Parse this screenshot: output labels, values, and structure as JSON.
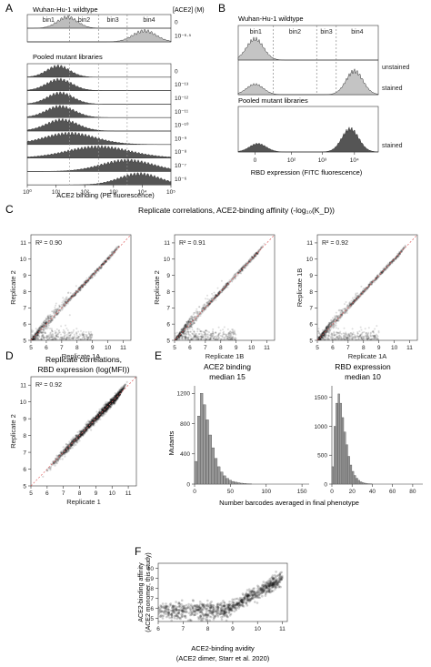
{
  "panels": {
    "A": {
      "letter": "A",
      "wt_label": "Wuhan-Hu-1 wildtype",
      "conc_header": "[ACE2] (M)",
      "bins": [
        "bin1",
        "bin2",
        "bin3",
        "bin4"
      ],
      "wt_concs": [
        "0",
        "10⁻⁶·⁵"
      ],
      "lib_label": "Pooled mutant libraries",
      "lib_concs": [
        "0",
        "10⁻¹³",
        "10⁻¹²",
        "10⁻¹¹",
        "10⁻¹⁰",
        "10⁻⁹",
        "10⁻⁸",
        "10⁻⁷",
        "10⁻⁶"
      ],
      "x_ticks": [
        "10⁰",
        "10¹",
        "10²",
        "10³",
        "10⁴",
        "10⁵"
      ],
      "xlabel": "ACE2 binding (PE fluorescence)"
    },
    "B": {
      "letter": "B",
      "wt_label": "Wuhan-Hu-1 wildtype",
      "bins": [
        "bin1",
        "bin2",
        "bin3",
        "bin4"
      ],
      "row_labels": [
        "unstained",
        "stained"
      ],
      "lib_label": "Pooled mutant libraries",
      "lib_row_label": "stained",
      "x_ticks": [
        "0",
        "10²",
        "10³",
        "10⁴"
      ],
      "xlabel": "RBD expression (FITC fluorescence)"
    },
    "C": {
      "letter": "C",
      "title": "Replicate correlations, ACE2-binding affinity (-log₁₀(K_D))",
      "plots": [
        {
          "r2": "R² = 0.90",
          "xlabel": "Replicate 1A",
          "ylabel": "Replicate 2"
        },
        {
          "r2": "R² = 0.91",
          "xlabel": "Replicate 1B",
          "ylabel": "Replicate 2"
        },
        {
          "r2": "R² = 0.92",
          "xlabel": "Replicate 1A",
          "ylabel": "Replicate 1B"
        }
      ],
      "ticks": [
        "5",
        "6",
        "7",
        "8",
        "9",
        "10",
        "11"
      ]
    },
    "D": {
      "letter": "D",
      "title_lines": [
        "Replicate correlations,",
        "RBD expression (log(MFI))"
      ],
      "r2": "R² = 0.92",
      "xlabel": "Replicate 1",
      "ylabel": "Replicate 2",
      "ticks": [
        "5",
        "6",
        "7",
        "8",
        "9",
        "10",
        "11"
      ]
    },
    "E": {
      "letter": "E",
      "left": {
        "title_lines": [
          "ACE2 binding",
          "median 15"
        ],
        "y_ticks": [
          "0",
          "400",
          "800",
          "1200"
        ],
        "x_ticks": [
          "0",
          "50",
          "100",
          "150"
        ]
      },
      "right": {
        "title_lines": [
          "RBD expression",
          "median 10"
        ],
        "y_ticks": [
          "0",
          "500",
          "1000",
          "1500"
        ],
        "x_ticks": [
          "0",
          "20",
          "40",
          "60",
          "80"
        ]
      },
      "ylabel": "Mutants",
      "xlabel": "Number barcodes averaged in final phenotype"
    },
    "F": {
      "letter": "F",
      "ylabel_lines": [
        "ACE2-binding affinity",
        "(ACE2 monomer, this study)"
      ],
      "xlabel_lines": [
        "ACE2-binding avidity",
        "(ACE2 dimer, Starr et al. 2020)"
      ],
      "x_ticks": [
        "6",
        "7",
        "8",
        "9",
        "10",
        "11"
      ],
      "y_ticks": [
        "5",
        "6",
        "7",
        "8",
        "9",
        "10"
      ]
    }
  },
  "chart_data": [
    {
      "type": "area",
      "panel": "A",
      "xlabel": "ACE2 binding (PE fluorescence)",
      "xscale": "log",
      "xlim": [
        1,
        100000
      ],
      "gates": [
        30,
        300,
        3000
      ],
      "series": [
        {
          "name": "0",
          "peak_x": 25,
          "spread_decades": 0.35
        },
        {
          "name": "10⁻⁶·⁵",
          "peak_x": 12000,
          "spread_decades": 0.4
        },
        {
          "name": "0",
          "peak_x": 12,
          "spread_decades": 0.4
        },
        {
          "name": "10⁻¹³",
          "peak_x": 13,
          "spread_decades": 0.45
        },
        {
          "name": "10⁻¹²",
          "peak_x": 14,
          "spread_decades": 0.45
        },
        {
          "name": "10⁻¹¹",
          "peak_x": 14,
          "spread_decades": 0.5
        },
        {
          "name": "10⁻¹⁰",
          "peak_x": 16,
          "spread_decades": 0.55
        },
        {
          "name": "10⁻⁹",
          "peak_x": 30,
          "spread_decades": 0.9
        },
        {
          "name": "10⁻⁸",
          "peak_x": 300,
          "spread_decades": 1.1
        },
        {
          "name": "10⁻⁷",
          "peak_x": 3000,
          "spread_decades": 0.9
        },
        {
          "name": "10⁻⁶",
          "peak_x": 8000,
          "spread_decades": 0.7
        }
      ]
    },
    {
      "type": "area",
      "panel": "B",
      "xlabel": "RBD expression (FITC fluorescence)",
      "series": [
        {
          "name": "unstained",
          "peaks": [
            {
              "x": 0.12,
              "h": 0.75
            }
          ]
        },
        {
          "name": "stained",
          "peaks": [
            {
              "x": 0.12,
              "h": 0.35
            },
            {
              "x": 0.83,
              "h": 0.8
            }
          ]
        },
        {
          "name": "stained",
          "peaks": [
            {
              "x": 0.14,
              "h": 0.25
            },
            {
              "x": 0.8,
              "h": 0.7
            }
          ]
        }
      ]
    },
    {
      "type": "scatter",
      "panel": "C",
      "title": "Replicate correlations, ACE2-binding affinity (-log₁₀(K_D))",
      "xlim": [
        5,
        11.5
      ],
      "ylim": [
        5,
        11.5
      ],
      "series": [
        {
          "name": "R² = 0.90",
          "r2": 0.9
        },
        {
          "name": "R² = 0.91",
          "r2": 0.91
        },
        {
          "name": "R² = 0.92",
          "r2": 0.92
        }
      ]
    },
    {
      "type": "scatter",
      "panel": "D",
      "title": "Replicate correlations, RBD expression (log(MFI))",
      "xlim": [
        5,
        11.5
      ],
      "ylim": [
        5,
        11.5
      ],
      "r2": 0.92
    },
    {
      "type": "bar",
      "panel": "E",
      "title": "ACE2 binding",
      "median": 15,
      "xlim": [
        0,
        160
      ],
      "ylim": [
        0,
        1300
      ],
      "x": [
        2,
        6,
        10,
        14,
        18,
        22,
        26,
        30,
        34,
        38,
        42,
        46,
        50,
        54,
        58,
        62,
        66,
        70,
        74,
        78
      ],
      "values": [
        300,
        900,
        1200,
        1050,
        850,
        650,
        480,
        340,
        230,
        160,
        110,
        75,
        50,
        35,
        25,
        18,
        12,
        8,
        5,
        3
      ]
    },
    {
      "type": "bar",
      "panel": "E",
      "title": "RBD expression",
      "median": 10,
      "xlim": [
        0,
        90
      ],
      "ylim": [
        0,
        1700
      ],
      "x": [
        1,
        3,
        5,
        7,
        9,
        11,
        13,
        15,
        17,
        19,
        21,
        23,
        25,
        27,
        29,
        31,
        33,
        35,
        37,
        39
      ],
      "values": [
        300,
        1000,
        1400,
        1560,
        1400,
        1150,
        900,
        680,
        480,
        330,
        220,
        150,
        100,
        65,
        40,
        25,
        15,
        10,
        6,
        3
      ]
    },
    {
      "type": "scatter",
      "panel": "F",
      "xlim": [
        6,
        11.2
      ],
      "ylim": [
        4.7,
        10.5
      ]
    }
  ]
}
